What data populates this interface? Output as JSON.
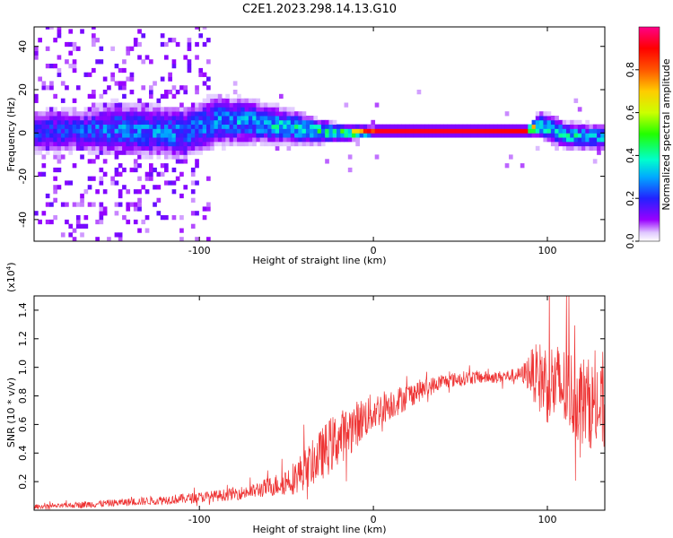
{
  "title": "C2E1.2023.298.14.13.G10",
  "chart_data": [
    {
      "type": "heatmap",
      "xlabel": "Height of straight line (km)",
      "ylabel": "Frequency (Hz)",
      "xlim": [
        -195,
        133
      ],
      "ylim": [
        -50,
        49
      ],
      "x_ticks": [
        {
          "value": -100,
          "label": "-100"
        },
        {
          "value": 0,
          "label": "0"
        },
        {
          "value": 100,
          "label": "100"
        }
      ],
      "y_ticks": [
        {
          "value": 40,
          "label": "40"
        },
        {
          "value": 20,
          "label": "20"
        },
        {
          "value": 0,
          "label": "0"
        },
        {
          "value": -20,
          "label": "-20"
        },
        {
          "value": -40,
          "label": "-40"
        }
      ],
      "ridge": [
        {
          "x": -170,
          "f": 0,
          "amp": 0.25,
          "spread": 5
        },
        {
          "x": -150,
          "f": 1,
          "amp": 0.3,
          "spread": 6
        },
        {
          "x": -130,
          "f": 0,
          "amp": 0.3,
          "spread": 6
        },
        {
          "x": -110,
          "f": -1,
          "amp": 0.3,
          "spread": 6
        },
        {
          "x": -90,
          "f": 5,
          "amp": 0.3,
          "spread": 6
        },
        {
          "x": -70,
          "f": 4,
          "amp": 0.35,
          "spread": 5
        },
        {
          "x": -50,
          "f": 2,
          "amp": 0.4,
          "spread": 4
        },
        {
          "x": -35,
          "f": 0,
          "amp": 0.45,
          "spread": 3
        },
        {
          "x": -20,
          "f": -1,
          "amp": 0.5,
          "spread": 2
        },
        {
          "x": 0,
          "f": 0,
          "amp": 0.92,
          "spread": 1
        },
        {
          "x": 50,
          "f": 0,
          "amp": 0.92,
          "spread": 1
        },
        {
          "x": 88,
          "f": 0,
          "amp": 0.9,
          "spread": 1
        },
        {
          "x": 95,
          "f": 3,
          "amp": 0.45,
          "spread": 3
        },
        {
          "x": 110,
          "f": -2,
          "amp": 0.4,
          "spread": 3
        },
        {
          "x": 130,
          "f": -3,
          "amp": 0.35,
          "spread": 3
        }
      ]
    },
    {
      "type": "colorbar",
      "label": "Normalized spectral amplitude",
      "range": [
        0,
        1
      ],
      "ticks": [
        {
          "value": 0,
          "label": "0.0"
        },
        {
          "value": 0.2,
          "label": "0.2"
        },
        {
          "value": 0.4,
          "label": "0.4"
        },
        {
          "value": 0.6,
          "label": "0.6"
        },
        {
          "value": 0.8,
          "label": "0.8"
        }
      ]
    },
    {
      "type": "line",
      "xlabel": "Height of straight line (km)",
      "ylabel": "SNR (10 * v/v)",
      "scale_label": "(x10",
      "scale_exp": "4",
      "scale_close": ")",
      "color": "#ee3333",
      "xlim": [
        -195,
        133
      ],
      "ylim": [
        0,
        15000
      ],
      "x_ticks": [
        {
          "value": -100,
          "label": "-100"
        },
        {
          "value": 0,
          "label": "0"
        },
        {
          "value": 100,
          "label": "100"
        }
      ],
      "y_ticks": [
        {
          "value": 2000,
          "label": "0.2"
        },
        {
          "value": 4000,
          "label": "0.4"
        },
        {
          "value": 6000,
          "label": "0.6"
        },
        {
          "value": 8000,
          "label": "0.8"
        },
        {
          "value": 10000,
          "label": "1.0"
        },
        {
          "value": 12000,
          "label": "1.2"
        },
        {
          "value": 14000,
          "label": "1.4"
        }
      ],
      "series": [
        {
          "x": [
            -195,
            -180,
            -165,
            -150,
            -130,
            -110,
            -90,
            -70,
            -55,
            -45,
            -35,
            -25,
            -15,
            -5,
            5,
            15,
            25,
            40,
            55,
            70,
            85,
            90,
            95,
            100,
            110,
            120,
            133
          ],
          "y": [
            250,
            300,
            400,
            500,
            650,
            800,
            1000,
            1300,
            1800,
            2300,
            3300,
            4500,
            5500,
            6500,
            7200,
            7700,
            8300,
            9000,
            9300,
            9300,
            9500,
            9700,
            9300,
            9000,
            8500,
            7700,
            7000
          ],
          "spread": [
            150,
            150,
            250,
            250,
            300,
            350,
            400,
            500,
            800,
            1200,
            1600,
            2000,
            1800,
            1500,
            1200,
            1000,
            800,
            500,
            500,
            400,
            500,
            1500,
            2500,
            3000,
            3000,
            3200,
            3000
          ]
        }
      ]
    }
  ]
}
